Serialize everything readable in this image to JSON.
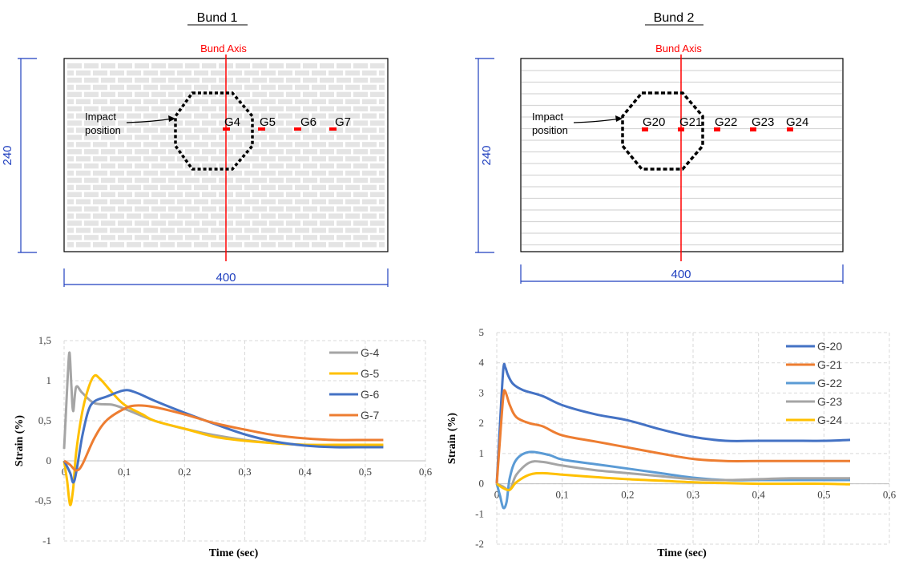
{
  "panels": [
    {
      "title": "Bund 1",
      "axis_label": "Bund Axis",
      "impact_label": [
        "Impact",
        "position"
      ],
      "dim_height": "240",
      "dim_width": "400",
      "gauges": [
        "G4",
        "G5",
        "G6",
        "G7"
      ]
    },
    {
      "title": "Bund 2",
      "axis_label": "Bund Axis",
      "impact_label": [
        "Impact",
        "position"
      ],
      "dim_height": "240",
      "dim_width": "400",
      "gauges": [
        "G20",
        "G21",
        "G22",
        "G23",
        "G24"
      ]
    }
  ],
  "colors": {
    "axis_red": "#ff0000",
    "dimension_blue": "#1f3fbf",
    "grid": "#d9d9d9"
  },
  "chart_data": [
    {
      "type": "line",
      "xlabel": "Time (sec)",
      "ylabel": "Strain (%)",
      "xlim": [
        0,
        0.6
      ],
      "ylim": [
        -1,
        1.5
      ],
      "xticks": [
        "0",
        "0,1",
        "0,2",
        "0,3",
        "0,4",
        "0,5",
        "0,6"
      ],
      "yticks": [
        "-1",
        "-0,5",
        "0",
        "0,5",
        "1",
        "1,5"
      ],
      "grid": true,
      "legend": "top-right",
      "series": [
        {
          "name": "G-4",
          "color": "#a5a5a5",
          "x": [
            0,
            0.003,
            0.006,
            0.009,
            0.012,
            0.015,
            0.02,
            0.03,
            0.05,
            0.08,
            0.1,
            0.15,
            0.2,
            0.25,
            0.3,
            0.35,
            0.4,
            0.45,
            0.5,
            0.53
          ],
          "y": [
            0.15,
            0.6,
            1.05,
            1.35,
            0.95,
            0.62,
            0.92,
            0.85,
            0.72,
            0.7,
            0.65,
            0.5,
            0.4,
            0.32,
            0.26,
            0.22,
            0.2,
            0.19,
            0.19,
            0.19
          ]
        },
        {
          "name": "G-5",
          "color": "#ffc000",
          "x": [
            0,
            0.005,
            0.01,
            0.015,
            0.02,
            0.03,
            0.04,
            0.05,
            0.06,
            0.08,
            0.1,
            0.13,
            0.15,
            0.2,
            0.25,
            0.3,
            0.35,
            0.4,
            0.45,
            0.5,
            0.53
          ],
          "y": [
            0,
            -0.25,
            -0.55,
            -0.35,
            0.1,
            0.6,
            0.9,
            1.06,
            1.02,
            0.85,
            0.7,
            0.58,
            0.5,
            0.4,
            0.3,
            0.25,
            0.22,
            0.2,
            0.2,
            0.2,
            0.2
          ]
        },
        {
          "name": "G-6",
          "color": "#4472c4",
          "x": [
            0,
            0.01,
            0.015,
            0.02,
            0.03,
            0.04,
            0.05,
            0.07,
            0.1,
            0.12,
            0.15,
            0.2,
            0.25,
            0.3,
            0.35,
            0.4,
            0.45,
            0.5,
            0.53
          ],
          "y": [
            0,
            -0.15,
            -0.27,
            -0.15,
            0.3,
            0.62,
            0.74,
            0.8,
            0.88,
            0.85,
            0.75,
            0.6,
            0.46,
            0.33,
            0.24,
            0.19,
            0.17,
            0.17,
            0.17
          ]
        },
        {
          "name": "G-7",
          "color": "#ed7d31",
          "x": [
            0,
            0.01,
            0.02,
            0.03,
            0.05,
            0.07,
            0.1,
            0.12,
            0.15,
            0.2,
            0.25,
            0.3,
            0.35,
            0.4,
            0.45,
            0.5,
            0.53
          ],
          "y": [
            0,
            -0.05,
            -0.12,
            -0.05,
            0.28,
            0.5,
            0.65,
            0.69,
            0.67,
            0.58,
            0.47,
            0.39,
            0.32,
            0.28,
            0.26,
            0.26,
            0.26
          ]
        }
      ]
    },
    {
      "type": "line",
      "xlabel": "Time (sec)",
      "ylabel": "Strain (%)",
      "xlim": [
        0,
        0.6
      ],
      "ylim": [
        -2,
        5
      ],
      "xticks": [
        "0",
        "0,1",
        "0,2",
        "0,3",
        "0,4",
        "0,5",
        "0,6"
      ],
      "yticks": [
        "-2",
        "-1",
        "0",
        "1",
        "2",
        "3",
        "4",
        "5"
      ],
      "grid": true,
      "legend": "top-right",
      "series": [
        {
          "name": "G-20",
          "color": "#4472c4",
          "x": [
            0,
            0.005,
            0.01,
            0.013,
            0.017,
            0.025,
            0.04,
            0.07,
            0.1,
            0.15,
            0.2,
            0.25,
            0.3,
            0.35,
            0.4,
            0.45,
            0.5,
            0.54
          ],
          "y": [
            0,
            2.0,
            3.8,
            3.85,
            3.6,
            3.3,
            3.1,
            2.9,
            2.6,
            2.3,
            2.1,
            1.8,
            1.55,
            1.42,
            1.42,
            1.42,
            1.42,
            1.45
          ]
        },
        {
          "name": "G-21",
          "color": "#ed7d31",
          "x": [
            0,
            0.005,
            0.01,
            0.013,
            0.02,
            0.03,
            0.05,
            0.07,
            0.1,
            0.15,
            0.2,
            0.25,
            0.3,
            0.35,
            0.4,
            0.45,
            0.5,
            0.54
          ],
          "y": [
            0,
            1.5,
            2.9,
            3.05,
            2.6,
            2.2,
            2.0,
            1.9,
            1.6,
            1.4,
            1.2,
            1.0,
            0.82,
            0.75,
            0.75,
            0.75,
            0.75,
            0.75
          ]
        },
        {
          "name": "G-22",
          "color": "#5b9bd5",
          "x": [
            0,
            0.005,
            0.01,
            0.015,
            0.02,
            0.03,
            0.05,
            0.08,
            0.1,
            0.15,
            0.2,
            0.25,
            0.3,
            0.35,
            0.4,
            0.45,
            0.5,
            0.54
          ],
          "y": [
            0,
            -0.4,
            -0.8,
            -0.6,
            0.2,
            0.8,
            1.05,
            0.95,
            0.8,
            0.65,
            0.5,
            0.35,
            0.2,
            0.12,
            0.12,
            0.12,
            0.12,
            0.12
          ]
        },
        {
          "name": "G-23",
          "color": "#a5a5a5",
          "x": [
            0,
            0.01,
            0.02,
            0.03,
            0.05,
            0.07,
            0.1,
            0.15,
            0.2,
            0.25,
            0.3,
            0.35,
            0.4,
            0.45,
            0.5,
            0.54
          ],
          "y": [
            0,
            -0.1,
            -0.2,
            0.3,
            0.7,
            0.72,
            0.6,
            0.45,
            0.35,
            0.25,
            0.15,
            0.12,
            0.15,
            0.18,
            0.18,
            0.18
          ]
        },
        {
          "name": "G-24",
          "color": "#ffc000",
          "x": [
            0,
            0.01,
            0.02,
            0.03,
            0.05,
            0.07,
            0.1,
            0.15,
            0.2,
            0.25,
            0.3,
            0.35,
            0.4,
            0.45,
            0.5,
            0.54
          ],
          "y": [
            0,
            -0.15,
            -0.2,
            0.05,
            0.3,
            0.35,
            0.3,
            0.22,
            0.15,
            0.1,
            0.05,
            0.02,
            0.0,
            0.0,
            0.0,
            -0.02
          ]
        }
      ]
    }
  ]
}
